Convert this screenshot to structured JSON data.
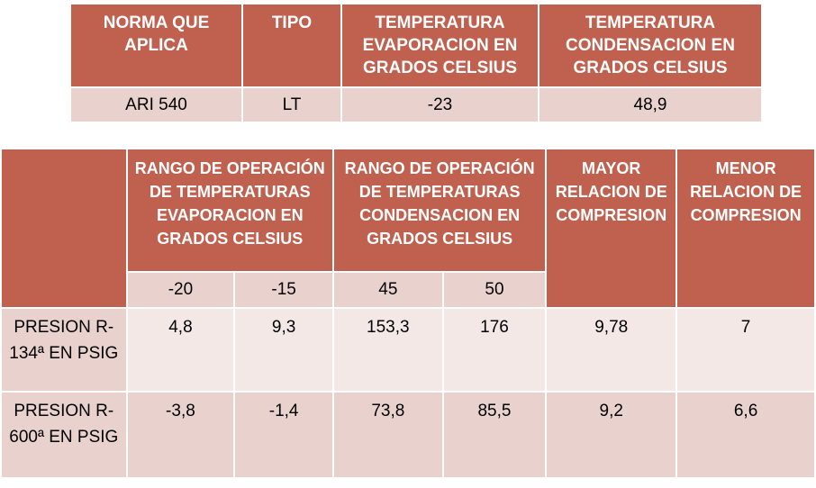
{
  "table1": {
    "headers": [
      "NORMA QUE APLICA",
      "TIPO",
      "TEMPERATURA EVAPORACION EN GRADOS CELSIUS",
      "TEMPERATURA CONDENSACION EN GRADOS CELSIUS"
    ],
    "row": [
      "ARI 540",
      "LT",
      "-23",
      "48,9"
    ]
  },
  "table2": {
    "headers": {
      "evap_range": "RANGO DE OPERACIÓN DE TEMPERATURAS EVAPORACION EN GRADOS CELSIUS",
      "cond_range": "RANGO DE OPERACIÓN DE TEMPERATURAS CONDENSACION EN GRADOS CELSIUS",
      "max_ratio": "MAYOR RELACION DE COMPRESION",
      "min_ratio": "MENOR RELACION DE COMPRESION"
    },
    "subheaders": [
      "-20",
      "-15",
      "45",
      "50"
    ],
    "rows": [
      {
        "label": "PRESION R-134ª EN PSIG",
        "values": [
          "4,8",
          "9,3",
          "153,3",
          "176",
          "9,78",
          "7"
        ]
      },
      {
        "label": "PRESION R-600ª EN PSIG",
        "values": [
          "-3,8",
          "-1,4",
          "73,8",
          "85,5",
          "9,2",
          "6,6"
        ]
      }
    ]
  },
  "colors": {
    "header_bg": "#c0604f",
    "row_light": "#e9d2cd",
    "row_pale": "#f3e8e6"
  }
}
